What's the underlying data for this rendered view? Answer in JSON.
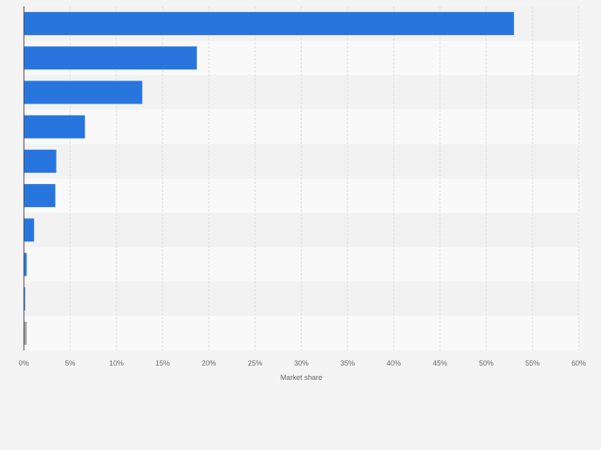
{
  "chart_data": {
    "type": "bar",
    "orientation": "horizontal",
    "categories": [
      "",
      "",
      "",
      "",
      "",
      "",
      "",
      "",
      "",
      ""
    ],
    "values": [
      53,
      18.7,
      12.8,
      6.6,
      3.5,
      3.4,
      1.1,
      0.3,
      0.1,
      0.3
    ],
    "bar_colors": [
      "#2876dd",
      "#2876dd",
      "#2876dd",
      "#2876dd",
      "#2876dd",
      "#2876dd",
      "#2876dd",
      "#2876dd",
      "#2876dd",
      "#a0a0a0"
    ],
    "xlabel": "Market share",
    "ylabel": "",
    "xlim": [
      0,
      60
    ],
    "xticks": [
      "0%",
      "5%",
      "10%",
      "15%",
      "20%",
      "25%",
      "30%",
      "35%",
      "40%",
      "45%",
      "50%",
      "55%",
      "60%"
    ],
    "grid": true,
    "legend": "none"
  }
}
